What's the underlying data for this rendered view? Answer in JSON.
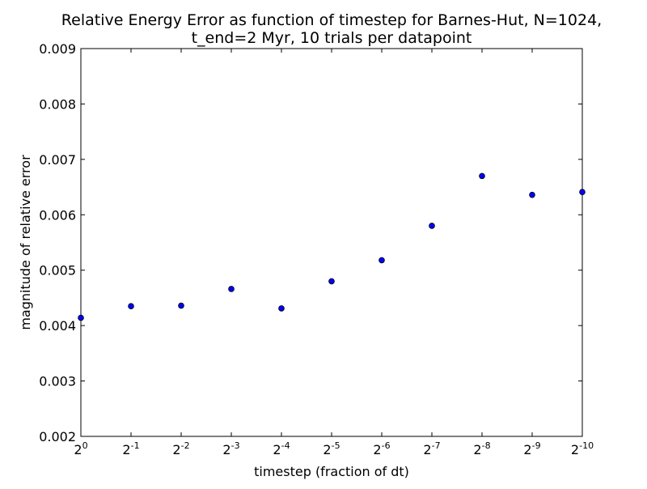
{
  "chart_data": {
    "type": "scatter",
    "title_lines": [
      "Relative Energy Error as function of timestep for Barnes-Hut, N=1024,",
      "t_end=2 Myr, 10 trials per datapoint"
    ],
    "xlabel": "timestep (fraction of dt)",
    "ylabel": "magnitude of relative error",
    "x_tick_labels": [
      {
        "base": "2",
        "exp": "0"
      },
      {
        "base": "2",
        "exp": "-1"
      },
      {
        "base": "2",
        "exp": "-2"
      },
      {
        "base": "2",
        "exp": "-3"
      },
      {
        "base": "2",
        "exp": "-4"
      },
      {
        "base": "2",
        "exp": "-5"
      },
      {
        "base": "2",
        "exp": "-6"
      },
      {
        "base": "2",
        "exp": "-7"
      },
      {
        "base": "2",
        "exp": "-8"
      },
      {
        "base": "2",
        "exp": "-9"
      },
      {
        "base": "2",
        "exp": "-10"
      }
    ],
    "y_ticks": [
      0.002,
      0.003,
      0.004,
      0.005,
      0.006,
      0.007,
      0.008,
      0.009
    ],
    "y_tick_labels": [
      "0.002",
      "0.003",
      "0.004",
      "0.005",
      "0.006",
      "0.007",
      "0.008",
      "0.009"
    ],
    "ylim": [
      0.002,
      0.009
    ],
    "x_exponents": [
      0,
      -1,
      -2,
      -3,
      -4,
      -5,
      -6,
      -7,
      -8,
      -9,
      -10
    ],
    "values": [
      0.00414,
      0.00435,
      0.00436,
      0.00466,
      0.00431,
      0.0048,
      0.00518,
      0.0058,
      0.0067,
      0.00636,
      0.00641
    ],
    "marker_color": "#0000ff",
    "marker_edge_color": "#000000",
    "grid": false
  }
}
